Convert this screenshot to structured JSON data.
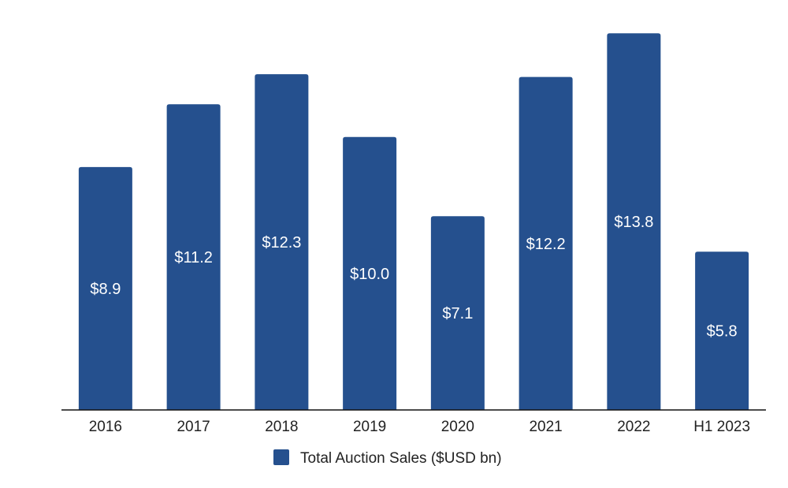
{
  "chart_data": {
    "type": "bar",
    "title": "",
    "xlabel": "",
    "ylabel": "",
    "categories": [
      "2016",
      "2017",
      "2018",
      "2019",
      "2020",
      "2021",
      "2022",
      "H1 2023"
    ],
    "series": [
      {
        "name": "Total Auction Sales ($USD bn)",
        "values": [
          8.9,
          11.2,
          12.3,
          10.0,
          7.1,
          12.2,
          13.8,
          5.8
        ],
        "labels": [
          "$8.9",
          "$11.2",
          "$12.3",
          "$10.0",
          "$7.1",
          "$12.2",
          "$13.8",
          "$5.8"
        ],
        "color": "#25508e"
      }
    ],
    "ylim": [
      0,
      14.5
    ],
    "grid": false,
    "legend": "bottom-center"
  },
  "colors": {
    "bar": "#25508e",
    "axis": "#111111",
    "background": "#ffffff"
  }
}
